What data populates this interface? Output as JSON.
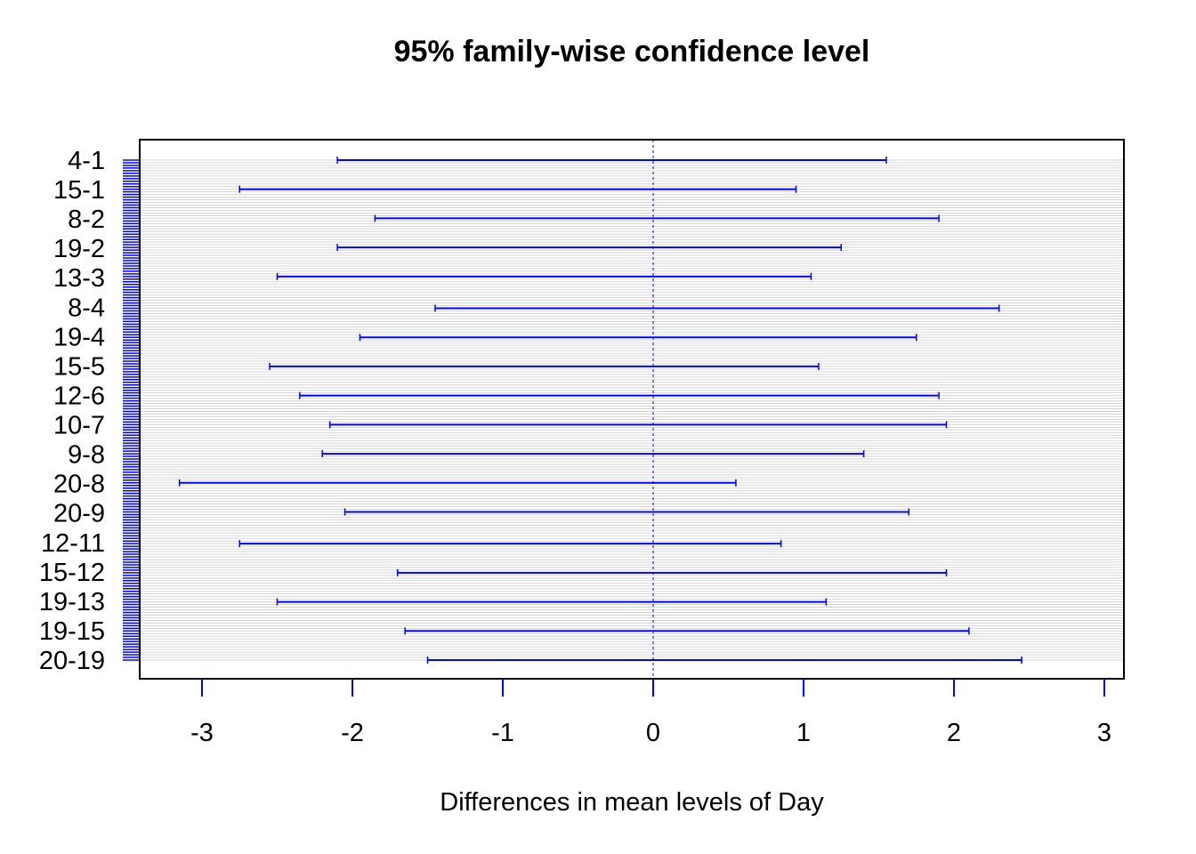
{
  "chart_data": {
    "type": "interval",
    "title": "95% family-wise confidence level",
    "xlabel": "Differences in mean levels of Day",
    "ylabel": "",
    "xlim": [
      -3.45,
      3.1
    ],
    "x_ticks": [
      -3,
      -2,
      -1,
      0,
      1,
      2,
      3
    ],
    "x_tick_labels": [
      "-3",
      "-2",
      "-1",
      "0",
      "1",
      "2",
      "3"
    ],
    "y_tick_labels": [
      "4-1",
      "15-1",
      "8-2",
      "19-2",
      "13-3",
      "8-4",
      "19-4",
      "15-5",
      "12-6",
      "10-7",
      "9-8",
      "20-8",
      "20-9",
      "12-11",
      "15-12",
      "19-13",
      "19-15",
      "20-19"
    ],
    "n_comparisons": 190,
    "reference_line": 0,
    "interval_color": "#0000ff",
    "grid": "light-gray horizontal line per comparison",
    "comparisons": [
      {
        "label": "4-1",
        "lwr": -2.1,
        "upr": 1.55
      },
      {
        "label": "15-1",
        "lwr": -2.75,
        "upr": 0.95
      },
      {
        "label": "8-2",
        "lwr": -1.85,
        "upr": 1.9
      },
      {
        "label": "19-2",
        "lwr": -2.1,
        "upr": 1.25
      },
      {
        "label": "13-3",
        "lwr": -2.5,
        "upr": 1.05
      },
      {
        "label": "8-4",
        "lwr": -1.45,
        "upr": 2.3
      },
      {
        "label": "19-4",
        "lwr": -1.95,
        "upr": 1.75
      },
      {
        "label": "15-5",
        "lwr": -2.55,
        "upr": 1.1
      },
      {
        "label": "12-6",
        "lwr": -2.35,
        "upr": 1.9
      },
      {
        "label": "10-7",
        "lwr": -2.15,
        "upr": 1.95
      },
      {
        "label": "9-8",
        "lwr": -2.2,
        "upr": 1.4
      },
      {
        "label": "20-8",
        "lwr": -3.15,
        "upr": 0.55
      },
      {
        "label": "20-9",
        "lwr": -2.05,
        "upr": 1.7
      },
      {
        "label": "12-11",
        "lwr": -2.75,
        "upr": 0.85
      },
      {
        "label": "15-12",
        "lwr": -1.7,
        "upr": 1.95
      },
      {
        "label": "19-13",
        "lwr": -2.5,
        "upr": 1.15
      },
      {
        "label": "19-15",
        "lwr": -1.65,
        "upr": 2.1
      },
      {
        "label": "20-19",
        "lwr": -1.5,
        "upr": 2.45
      }
    ]
  }
}
